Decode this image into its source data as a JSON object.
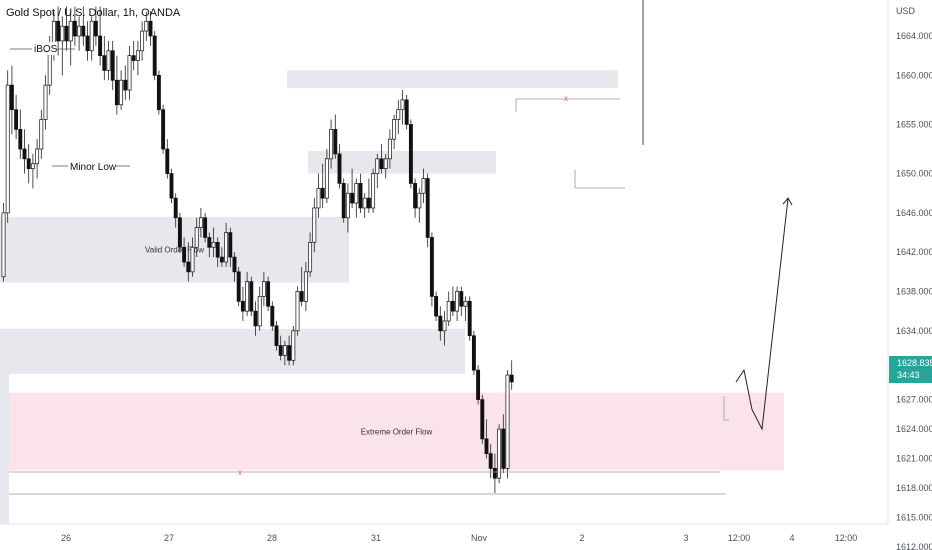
{
  "header": {
    "title": "Gold Spot / U.S. Dollar, 1h, OANDA"
  },
  "price_axis": {
    "currency": "USD",
    "ticks": [
      "1664.000",
      "1660.000",
      "1655.000",
      "1650.000",
      "1646.000",
      "1642.000",
      "1638.000",
      "1634.000",
      "1630.000",
      "1627.000",
      "1624.000",
      "1621.000",
      "1618.000",
      "1615.000",
      "1612.000"
    ]
  },
  "time_axis": {
    "ticks": [
      "26",
      "27",
      "28",
      "31",
      "Nov",
      "2",
      "3",
      "12:00",
      "4",
      "12:00"
    ]
  },
  "last_price": {
    "price": "1628.835",
    "countdown": "34:43",
    "color": "#26a69a"
  },
  "zones": [
    {
      "label": "Valid Order Flow",
      "color": "#e6e8ee",
      "top": 1645.6,
      "bottom": 1638.9
    },
    {
      "label": "",
      "color": "#e6e8ee",
      "top": 1660.5,
      "bottom": 1658.7
    },
    {
      "label": "",
      "color": "#e6e8ee",
      "top": 1652.3,
      "bottom": 1650.0
    },
    {
      "label": "",
      "color": "#e6e8ee",
      "top": 1634.2,
      "bottom": 1629.6
    },
    {
      "label": "Extreme Order Flow",
      "color": "#fbe3ea",
      "top": 1627.7,
      "bottom": 1619.8
    }
  ],
  "annotations": {
    "ibos": "iBOS",
    "minor_low": "Minor Low",
    "x_mark_upper": "x",
    "x_mark_lower": "x"
  },
  "chart_data": {
    "type": "candlestick",
    "title": "Gold Spot / U.S. Dollar, 1h, OANDA",
    "y_unit": "USD",
    "ylim": [
      1611.6,
      1667.0
    ],
    "grid": false,
    "x_tick_labels": [
      "26",
      "27",
      "28",
      "31",
      "Nov",
      "2",
      "3",
      "12:00",
      "4",
      "12:00"
    ],
    "ohlc": [
      [
        1639.5,
        1647.0,
        1639.0,
        1646.0
      ],
      [
        1646.0,
        1660.5,
        1645.0,
        1659.0
      ],
      [
        1659.0,
        1661.0,
        1654.0,
        1656.5
      ],
      [
        1656.5,
        1658.0,
        1653.5,
        1654.5
      ],
      [
        1654.5,
        1656.5,
        1651.5,
        1652.5
      ],
      [
        1652.5,
        1654.5,
        1650.0,
        1651.5
      ],
      [
        1651.5,
        1653.0,
        1649.0,
        1650.5
      ],
      [
        1650.5,
        1652.0,
        1648.5,
        1651.0
      ],
      [
        1651.0,
        1653.5,
        1649.5,
        1652.5
      ],
      [
        1652.5,
        1656.5,
        1651.5,
        1655.5
      ],
      [
        1655.5,
        1660.0,
        1654.5,
        1659.0
      ],
      [
        1659.0,
        1664.0,
        1658.0,
        1663.0
      ],
      [
        1663.0,
        1666.5,
        1661.5,
        1665.5
      ],
      [
        1665.5,
        1667.0,
        1662.0,
        1663.5
      ],
      [
        1663.5,
        1666.0,
        1660.0,
        1665.0
      ],
      [
        1665.0,
        1667.0,
        1662.5,
        1663.5
      ],
      [
        1663.5,
        1666.5,
        1661.0,
        1665.5
      ],
      [
        1665.5,
        1667.0,
        1663.0,
        1664.0
      ],
      [
        1664.0,
        1666.0,
        1662.5,
        1665.0
      ],
      [
        1665.0,
        1667.0,
        1663.0,
        1664.0
      ],
      [
        1664.0,
        1665.5,
        1661.5,
        1662.5
      ],
      [
        1662.5,
        1666.0,
        1661.5,
        1665.5
      ],
      [
        1665.5,
        1667.0,
        1663.0,
        1664.0
      ],
      [
        1664.0,
        1667.0,
        1661.0,
        1662.0
      ],
      [
        1662.0,
        1664.0,
        1659.5,
        1660.5
      ],
      [
        1660.5,
        1663.5,
        1659.5,
        1662.5
      ],
      [
        1662.5,
        1663.5,
        1658.5,
        1659.5
      ],
      [
        1659.5,
        1662.0,
        1656.0,
        1657.0
      ],
      [
        1657.0,
        1660.5,
        1656.5,
        1659.5
      ],
      [
        1659.5,
        1661.0,
        1657.5,
        1658.5
      ],
      [
        1658.5,
        1663.0,
        1657.5,
        1662.0
      ],
      [
        1662.0,
        1663.5,
        1660.5,
        1661.5
      ],
      [
        1661.5,
        1663.5,
        1660.0,
        1662.5
      ],
      [
        1662.5,
        1665.5,
        1661.5,
        1664.5
      ],
      [
        1664.5,
        1666.5,
        1663.5,
        1665.5
      ],
      [
        1665.5,
        1666.5,
        1663.0,
        1664.0
      ],
      [
        1664.0,
        1664.5,
        1659.5,
        1660.0
      ],
      [
        1660.0,
        1660.5,
        1656.0,
        1656.5
      ],
      [
        1656.5,
        1657.0,
        1652.0,
        1652.5
      ],
      [
        1652.5,
        1653.5,
        1649.5,
        1650.0
      ],
      [
        1650.0,
        1650.5,
        1647.0,
        1647.5
      ],
      [
        1647.5,
        1648.0,
        1644.5,
        1645.5
      ],
      [
        1645.5,
        1646.0,
        1642.0,
        1642.5
      ],
      [
        1642.5,
        1643.5,
        1640.5,
        1641.0
      ],
      [
        1641.0,
        1643.0,
        1639.0,
        1640.0
      ],
      [
        1640.0,
        1643.5,
        1639.5,
        1642.5
      ],
      [
        1642.5,
        1645.5,
        1641.5,
        1644.5
      ],
      [
        1644.5,
        1646.5,
        1643.5,
        1645.5
      ],
      [
        1645.5,
        1646.0,
        1643.0,
        1643.5
      ],
      [
        1643.5,
        1644.0,
        1641.5,
        1642.5
      ],
      [
        1642.5,
        1644.5,
        1641.5,
        1643.0
      ],
      [
        1643.0,
        1643.5,
        1640.5,
        1641.5
      ],
      [
        1641.5,
        1642.5,
        1640.5,
        1641.0
      ],
      [
        1641.0,
        1645.0,
        1640.5,
        1644.0
      ],
      [
        1644.0,
        1644.5,
        1640.5,
        1641.5
      ],
      [
        1641.5,
        1642.0,
        1639.0,
        1640.0
      ],
      [
        1640.0,
        1640.5,
        1636.5,
        1637.0
      ],
      [
        1637.0,
        1638.5,
        1635.0,
        1636.0
      ],
      [
        1636.0,
        1640.0,
        1635.5,
        1639.0
      ],
      [
        1639.0,
        1639.5,
        1635.5,
        1636.0
      ],
      [
        1636.0,
        1637.0,
        1633.5,
        1634.5
      ],
      [
        1634.5,
        1638.5,
        1634.0,
        1637.5
      ],
      [
        1637.5,
        1640.0,
        1636.5,
        1639.0
      ],
      [
        1639.0,
        1639.5,
        1636.0,
        1636.5
      ],
      [
        1636.5,
        1637.0,
        1634.0,
        1634.5
      ],
      [
        1634.5,
        1635.0,
        1632.0,
        1632.5
      ],
      [
        1632.5,
        1633.5,
        1631.0,
        1631.5
      ],
      [
        1631.5,
        1633.0,
        1630.5,
        1632.5
      ],
      [
        1632.5,
        1633.5,
        1630.5,
        1631.0
      ],
      [
        1631.0,
        1634.5,
        1630.5,
        1634.0
      ],
      [
        1634.0,
        1638.5,
        1633.5,
        1638.0
      ],
      [
        1638.0,
        1640.5,
        1636.5,
        1637.0
      ],
      [
        1637.0,
        1641.0,
        1636.0,
        1640.0
      ],
      [
        1640.0,
        1644.0,
        1639.5,
        1643.0
      ],
      [
        1643.0,
        1647.5,
        1642.0,
        1646.5
      ],
      [
        1646.5,
        1650.0,
        1645.5,
        1648.5
      ],
      [
        1648.5,
        1651.0,
        1646.5,
        1647.5
      ],
      [
        1647.5,
        1652.5,
        1647.0,
        1651.5
      ],
      [
        1651.5,
        1655.5,
        1650.5,
        1654.5
      ],
      [
        1654.5,
        1656.0,
        1651.5,
        1652.0
      ],
      [
        1652.0,
        1653.0,
        1648.5,
        1649.0
      ],
      [
        1649.0,
        1649.5,
        1645.0,
        1645.5
      ],
      [
        1645.5,
        1649.0,
        1644.0,
        1648.0
      ],
      [
        1648.0,
        1650.5,
        1646.5,
        1647.0
      ],
      [
        1647.0,
        1649.5,
        1645.5,
        1649.0
      ],
      [
        1649.0,
        1650.0,
        1646.0,
        1646.5
      ],
      [
        1646.5,
        1648.0,
        1645.5,
        1647.5
      ],
      [
        1647.5,
        1649.5,
        1646.0,
        1646.5
      ],
      [
        1646.5,
        1650.5,
        1646.0,
        1650.0
      ],
      [
        1650.0,
        1652.0,
        1648.5,
        1651.5
      ],
      [
        1651.5,
        1653.0,
        1650.0,
        1650.5
      ],
      [
        1650.5,
        1652.0,
        1649.5,
        1651.5
      ],
      [
        1651.5,
        1654.5,
        1650.5,
        1653.5
      ],
      [
        1653.5,
        1656.0,
        1652.5,
        1655.5
      ],
      [
        1655.5,
        1657.5,
        1654.0,
        1656.5
      ],
      [
        1656.5,
        1658.5,
        1655.0,
        1657.5
      ],
      [
        1657.5,
        1658.0,
        1654.5,
        1655.0
      ],
      [
        1655.0,
        1655.5,
        1648.5,
        1649.0
      ],
      [
        1649.0,
        1649.5,
        1645.5,
        1646.5
      ],
      [
        1646.5,
        1648.5,
        1645.0,
        1648.0
      ],
      [
        1648.0,
        1650.5,
        1647.0,
        1649.5
      ],
      [
        1649.5,
        1650.0,
        1642.5,
        1643.5
      ],
      [
        1643.5,
        1644.0,
        1636.5,
        1637.5
      ],
      [
        1637.5,
        1638.0,
        1635.0,
        1635.5
      ],
      [
        1635.5,
        1636.5,
        1633.0,
        1634.0
      ],
      [
        1634.0,
        1636.0,
        1632.5,
        1635.0
      ],
      [
        1635.0,
        1638.0,
        1634.5,
        1637.0
      ],
      [
        1637.0,
        1638.5,
        1635.5,
        1636.0
      ],
      [
        1636.0,
        1638.5,
        1635.0,
        1638.0
      ],
      [
        1638.0,
        1638.5,
        1635.5,
        1636.5
      ],
      [
        1636.5,
        1637.5,
        1635.0,
        1637.0
      ],
      [
        1637.0,
        1637.5,
        1633.0,
        1633.5
      ],
      [
        1633.5,
        1634.0,
        1629.5,
        1630.0
      ],
      [
        1630.0,
        1630.5,
        1626.5,
        1627.0
      ],
      [
        1627.0,
        1627.5,
        1622.5,
        1623.0
      ],
      [
        1623.0,
        1625.0,
        1621.0,
        1621.5
      ],
      [
        1621.5,
        1622.5,
        1619.0,
        1620.0
      ],
      [
        1620.0,
        1621.5,
        1617.5,
        1619.0
      ],
      [
        1619.0,
        1624.5,
        1618.5,
        1624.0
      ],
      [
        1624.0,
        1625.5,
        1619.5,
        1620.0
      ],
      [
        1620.0,
        1630.0,
        1619.0,
        1629.5
      ],
      [
        1629.5,
        1631.0,
        1628.0,
        1628.8
      ]
    ],
    "projection": [
      [
        1628.8,
        1630.0
      ],
      [
        1629.5,
        1626.0
      ],
      [
        1627.0,
        1624.0
      ],
      [
        1623.5,
        1647.5
      ]
    ]
  }
}
